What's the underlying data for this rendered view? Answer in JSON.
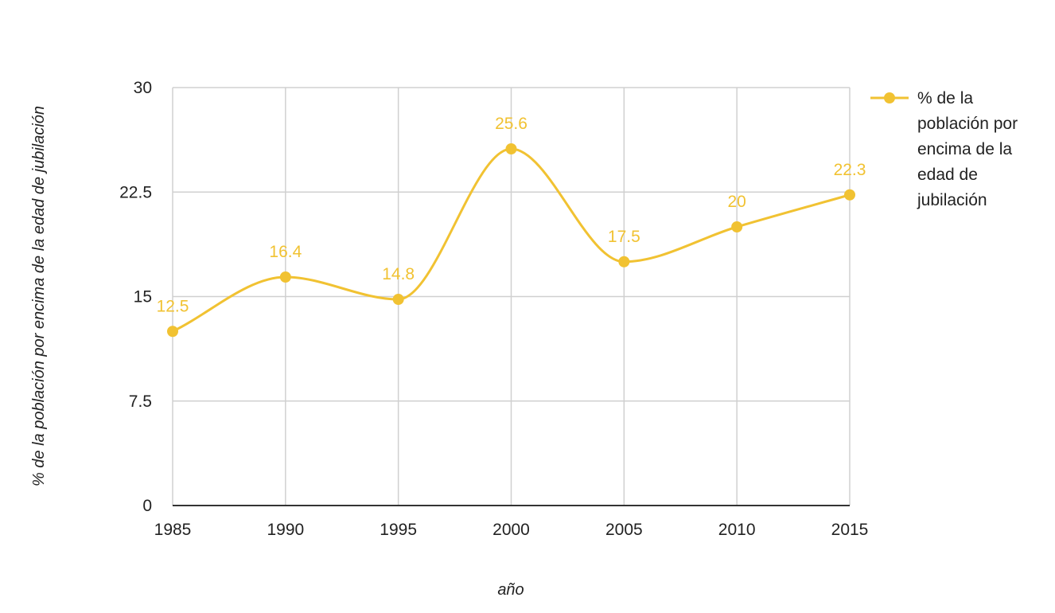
{
  "chart_data": {
    "type": "line",
    "x": [
      1985,
      1990,
      1995,
      2000,
      2005,
      2010,
      2015
    ],
    "series": [
      {
        "name": "% de la población por encima de la edad de jubilación",
        "values": [
          12.5,
          16.4,
          14.8,
          25.6,
          17.5,
          20,
          22.3
        ],
        "color": "#f1c232"
      }
    ],
    "xlabel": "año",
    "ylabel": "% de la población por encima de la edad de jubilación",
    "ylim": [
      0,
      30
    ],
    "yticks": [
      "0",
      "7.5",
      "15",
      "22.5",
      "30"
    ],
    "ytick_values": [
      0,
      7.5,
      15,
      22.5,
      30
    ],
    "xticks": [
      "1985",
      "1990",
      "1995",
      "2000",
      "2005",
      "2010",
      "2015"
    ],
    "data_labels": [
      "12.5",
      "16.4",
      "14.8",
      "25.6",
      "17.5",
      "20",
      "22.3"
    ],
    "legend": {
      "position": "right",
      "label_lines": [
        "% de la",
        "población por",
        "encima de la",
        "edad de",
        "jubilación"
      ]
    },
    "grid": true,
    "smooth": true
  }
}
